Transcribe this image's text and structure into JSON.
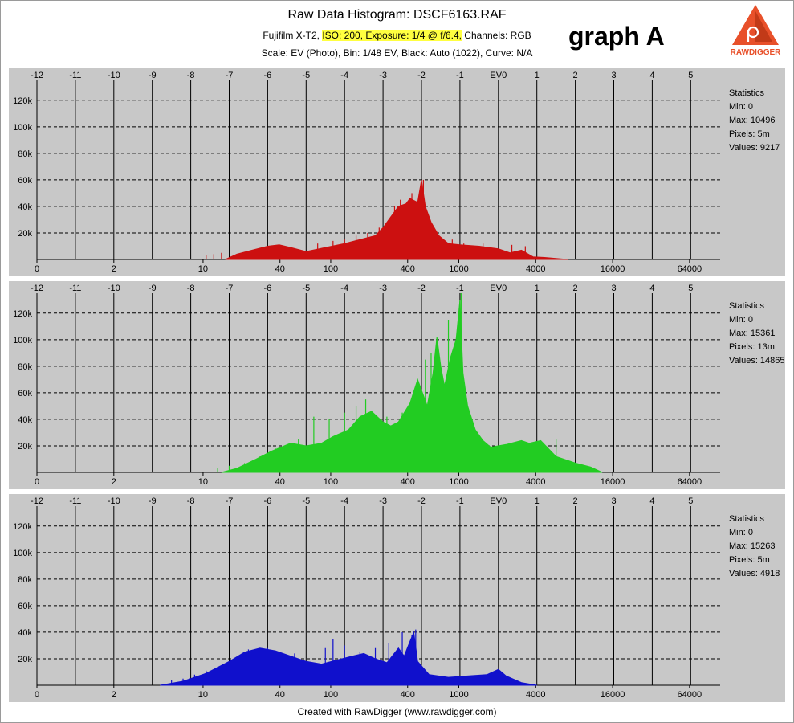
{
  "header": {
    "title": "Raw Data Histogram: DSCF6163.RAF",
    "camera": "Fujifilm X-T2,",
    "highlight": "ISO: 200, Exposure: 1/4 @ f/6.4,",
    "channels": "Channels: RGB",
    "line2": "Scale: EV (Photo), Bin: 1/48 EV, Black: Auto (1022), Curve: N/A",
    "graph_label": "graph A"
  },
  "logo": {
    "text": "RAWDIGGER",
    "icon": "rawdigger-logo-icon"
  },
  "footer": "Created with RawDigger (www.rawdigger.com)",
  "colors": {
    "panel_bg": "#c8c8c8",
    "red": "#cc1010",
    "green": "#22cc22",
    "blue": "#1010cc"
  },
  "chart_data": [
    {
      "type": "area",
      "channel": "red",
      "x_scale": "EV (log2)",
      "ev_ticks": [
        "-12",
        "-11",
        "-10",
        "-9",
        "-8",
        "-7",
        "-6",
        "-5",
        "-4",
        "-3",
        "-2",
        "-1",
        "EV0",
        "1",
        "2",
        "3",
        "4",
        "5"
      ],
      "raw_ticks": [
        {
          "label": "0",
          "ev": -12
        },
        {
          "label": "2",
          "ev": -10
        },
        {
          "label": "10",
          "ev": -7.68
        },
        {
          "label": "40",
          "ev": -5.68
        },
        {
          "label": "100",
          "ev": -4.36
        },
        {
          "label": "400",
          "ev": -2.36
        },
        {
          "label": "1000",
          "ev": -1.03
        },
        {
          "label": "4000",
          "ev": 0.97
        },
        {
          "label": "16000",
          "ev": 2.97
        },
        {
          "label": "64000",
          "ev": 4.97
        }
      ],
      "y_ticks": [
        "20k",
        "40k",
        "60k",
        "80k",
        "100k",
        "120k"
      ],
      "ylim": [
        0,
        135000
      ],
      "statistics": {
        "title": "Statistics",
        "min": "Min: 0",
        "max": "Max: 10496",
        "pixels": "Pixels: 5m",
        "values": "Values: 9217"
      },
      "points": [
        [
          -7.1,
          0
        ],
        [
          -6.8,
          4000
        ],
        [
          -6.4,
          7000
        ],
        [
          -6.0,
          10000
        ],
        [
          -5.7,
          11000
        ],
        [
          -5.4,
          9000
        ],
        [
          -5.0,
          6000
        ],
        [
          -4.5,
          9000
        ],
        [
          -4.0,
          12000
        ],
        [
          -3.6,
          15000
        ],
        [
          -3.2,
          18000
        ],
        [
          -3.0,
          24000
        ],
        [
          -2.8,
          32000
        ],
        [
          -2.6,
          40000
        ],
        [
          -2.4,
          42000
        ],
        [
          -2.3,
          46000
        ],
        [
          -2.1,
          43000
        ],
        [
          -2.0,
          60000
        ],
        [
          -1.9,
          40000
        ],
        [
          -1.75,
          28000
        ],
        [
          -1.55,
          18000
        ],
        [
          -1.3,
          12000
        ],
        [
          -1.0,
          11000
        ],
        [
          -0.5,
          10000
        ],
        [
          0.0,
          8000
        ],
        [
          0.3,
          5000
        ],
        [
          0.6,
          7000
        ],
        [
          0.9,
          2000
        ],
        [
          1.2,
          1500
        ],
        [
          1.8,
          0
        ]
      ],
      "spikes": [
        [
          -7.6,
          3000
        ],
        [
          -7.4,
          4000
        ],
        [
          -7.2,
          5000
        ],
        [
          -5.15,
          5000
        ],
        [
          -4.7,
          12000
        ],
        [
          -4.3,
          14000
        ],
        [
          -4.0,
          15000
        ],
        [
          -3.7,
          18000
        ],
        [
          -3.4,
          20000
        ],
        [
          -3.1,
          24000
        ],
        [
          -2.7,
          40000
        ],
        [
          -2.55,
          45000
        ],
        [
          -2.25,
          50000
        ],
        [
          -1.95,
          60000
        ],
        [
          -1.2,
          15000
        ],
        [
          -0.9,
          12000
        ],
        [
          -0.4,
          12000
        ],
        [
          0.35,
          11000
        ],
        [
          0.7,
          10000
        ]
      ]
    },
    {
      "type": "area",
      "channel": "green",
      "x_scale": "EV (log2)",
      "ev_ticks": [
        "-12",
        "-11",
        "-10",
        "-9",
        "-8",
        "-7",
        "-6",
        "-5",
        "-4",
        "-3",
        "-2",
        "-1",
        "EV0",
        "1",
        "2",
        "3",
        "4",
        "5"
      ],
      "raw_ticks": [
        {
          "label": "0",
          "ev": -12
        },
        {
          "label": "2",
          "ev": -10
        },
        {
          "label": "10",
          "ev": -7.68
        },
        {
          "label": "40",
          "ev": -5.68
        },
        {
          "label": "100",
          "ev": -4.36
        },
        {
          "label": "400",
          "ev": -2.36
        },
        {
          "label": "1000",
          "ev": -1.03
        },
        {
          "label": "4000",
          "ev": 0.97
        },
        {
          "label": "16000",
          "ev": 2.97
        },
        {
          "label": "64000",
          "ev": 4.97
        }
      ],
      "y_ticks": [
        "20k",
        "40k",
        "60k",
        "80k",
        "100k",
        "120k"
      ],
      "ylim": [
        0,
        135000
      ],
      "statistics": {
        "title": "Statistics",
        "min": "Min: 0",
        "max": "Max: 15361",
        "pixels": "Pixels: 13m",
        "values": "Values: 14865"
      },
      "points": [
        [
          -7.2,
          0
        ],
        [
          -6.8,
          3000
        ],
        [
          -6.3,
          10000
        ],
        [
          -5.9,
          16000
        ],
        [
          -5.4,
          22000
        ],
        [
          -5.0,
          20000
        ],
        [
          -4.6,
          22000
        ],
        [
          -4.3,
          27000
        ],
        [
          -3.9,
          32000
        ],
        [
          -3.6,
          42000
        ],
        [
          -3.3,
          46000
        ],
        [
          -3.0,
          38000
        ],
        [
          -2.8,
          35000
        ],
        [
          -2.6,
          38000
        ],
        [
          -2.3,
          52000
        ],
        [
          -2.1,
          70000
        ],
        [
          -2.0,
          62000
        ],
        [
          -1.85,
          50000
        ],
        [
          -1.7,
          75000
        ],
        [
          -1.6,
          102000
        ],
        [
          -1.5,
          80000
        ],
        [
          -1.4,
          65000
        ],
        [
          -1.25,
          86000
        ],
        [
          -1.1,
          100000
        ],
        [
          -1.0,
          130000
        ],
        [
          -0.92,
          75000
        ],
        [
          -0.8,
          50000
        ],
        [
          -0.6,
          32000
        ],
        [
          -0.4,
          24000
        ],
        [
          -0.2,
          19000
        ],
        [
          0.2,
          21000
        ],
        [
          0.6,
          24000
        ],
        [
          0.8,
          22000
        ],
        [
          1.1,
          24000
        ],
        [
          1.5,
          12000
        ],
        [
          2.0,
          7000
        ],
        [
          2.4,
          4000
        ],
        [
          2.7,
          0
        ]
      ],
      "spikes": [
        [
          -7.3,
          3000
        ],
        [
          -7.0,
          5000
        ],
        [
          -6.6,
          7000
        ],
        [
          -6.2,
          12000
        ],
        [
          -5.8,
          18000
        ],
        [
          -5.2,
          25000
        ],
        [
          -4.8,
          42000
        ],
        [
          -4.4,
          40000
        ],
        [
          -4.0,
          45000
        ],
        [
          -3.7,
          50000
        ],
        [
          -3.45,
          55000
        ],
        [
          -2.9,
          42000
        ],
        [
          -2.5,
          45000
        ],
        [
          -2.2,
          60000
        ],
        [
          -1.9,
          85000
        ],
        [
          -1.75,
          90000
        ],
        [
          -1.3,
          115000
        ],
        [
          -0.97,
          135000
        ],
        [
          1.5,
          25000
        ]
      ]
    },
    {
      "type": "area",
      "channel": "blue",
      "x_scale": "EV (log2)",
      "ev_ticks": [
        "-12",
        "-11",
        "-10",
        "-9",
        "-8",
        "-7",
        "-6",
        "-5",
        "-4",
        "-3",
        "-2",
        "-1",
        "EV0",
        "1",
        "2",
        "3",
        "4",
        "5"
      ],
      "raw_ticks": [
        {
          "label": "0",
          "ev": -12
        },
        {
          "label": "2",
          "ev": -10
        },
        {
          "label": "10",
          "ev": -7.68
        },
        {
          "label": "40",
          "ev": -5.68
        },
        {
          "label": "100",
          "ev": -4.36
        },
        {
          "label": "400",
          "ev": -2.36
        },
        {
          "label": "1000",
          "ev": -1.03
        },
        {
          "label": "4000",
          "ev": 0.97
        },
        {
          "label": "16000",
          "ev": 2.97
        },
        {
          "label": "64000",
          "ev": 4.97
        }
      ],
      "y_ticks": [
        "20k",
        "40k",
        "60k",
        "80k",
        "100k",
        "120k"
      ],
      "ylim": [
        0,
        135000
      ],
      "statistics": {
        "title": "Statistics",
        "min": "Min: 0",
        "max": "Max: 15263",
        "pixels": "Pixels: 5m",
        "values": "Values: 4918"
      },
      "points": [
        [
          -8.8,
          0
        ],
        [
          -8.2,
          3000
        ],
        [
          -7.6,
          9000
        ],
        [
          -7.0,
          18000
        ],
        [
          -6.6,
          25000
        ],
        [
          -6.2,
          28000
        ],
        [
          -5.8,
          26000
        ],
        [
          -5.4,
          22000
        ],
        [
          -5.0,
          18000
        ],
        [
          -4.6,
          16000
        ],
        [
          -4.2,
          19000
        ],
        [
          -3.8,
          22000
        ],
        [
          -3.5,
          24000
        ],
        [
          -3.2,
          20000
        ],
        [
          -2.9,
          17000
        ],
        [
          -2.6,
          28000
        ],
        [
          -2.45,
          22000
        ],
        [
          -2.3,
          33000
        ],
        [
          -2.2,
          40000
        ],
        [
          -2.1,
          18000
        ],
        [
          -1.8,
          8000
        ],
        [
          -1.3,
          6000
        ],
        [
          -0.8,
          7000
        ],
        [
          -0.3,
          8000
        ],
        [
          0.0,
          12000
        ],
        [
          0.2,
          7000
        ],
        [
          0.6,
          2000
        ],
        [
          1.0,
          0
        ]
      ],
      "spikes": [
        [
          -8.5,
          4000
        ],
        [
          -8.2,
          5000
        ],
        [
          -7.9,
          8000
        ],
        [
          -7.6,
          11000
        ],
        [
          -7.3,
          14000
        ],
        [
          -7.0,
          18000
        ],
        [
          -6.5,
          27000
        ],
        [
          -6.0,
          28000
        ],
        [
          -5.3,
          24000
        ],
        [
          -4.5,
          28000
        ],
        [
          -4.3,
          35000
        ],
        [
          -4.0,
          30000
        ],
        [
          -3.6,
          25000
        ],
        [
          -3.2,
          28000
        ],
        [
          -2.85,
          32000
        ],
        [
          -2.5,
          40000
        ],
        [
          -2.25,
          38000
        ],
        [
          -2.15,
          42000
        ]
      ]
    }
  ]
}
